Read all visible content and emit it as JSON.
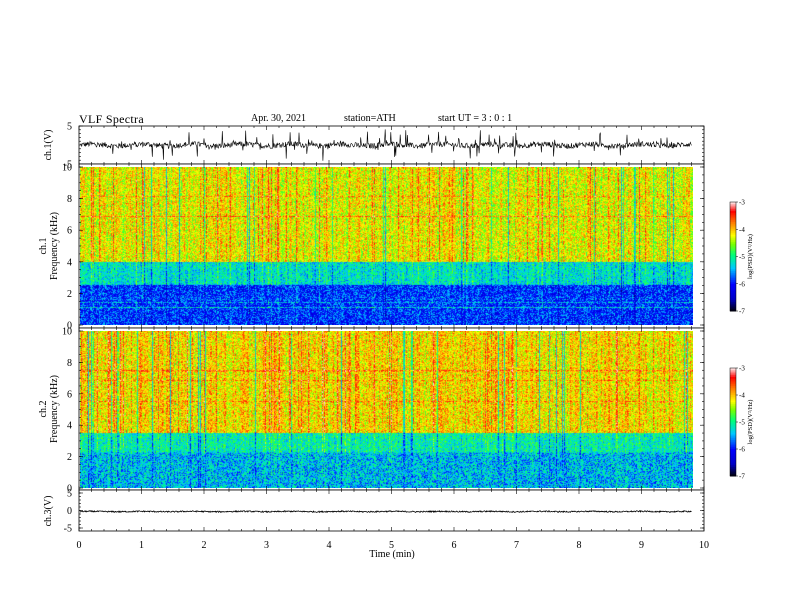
{
  "header": {
    "title": "VLF  Spectra",
    "date": "Apr. 30, 2021",
    "station": "station=ATH",
    "start": "start  UT  =   3  : 0   : 1"
  },
  "chart_data": [
    {
      "type": "line",
      "panel": "ch1-waveform",
      "ylabel": "ch.1(V)",
      "ylim": [
        -5,
        5
      ],
      "yticks": [
        "5",
        "-5"
      ],
      "baseline": 0,
      "amplitude_typical": 1.2,
      "amplitude_spikes": 3.5
    },
    {
      "type": "heatmap",
      "panel": "ch1-spectrogram",
      "ylabel": "ch.1\nFrequency (kHz)",
      "ylim": [
        0,
        10
      ],
      "yticks": [
        "0",
        "2",
        "4",
        "6",
        "8",
        "10"
      ],
      "xlim": [
        0,
        9.8
      ],
      "colorbar": {
        "label": "log(PSD)(V²/Hz)",
        "range": [
          -7,
          -3
        ],
        "ticks": [
          "-3",
          "-4",
          "-5",
          "-6",
          "-7"
        ]
      },
      "high_band_kHz": [
        4,
        10
      ],
      "high_band_level": -4.2,
      "mid_band_kHz": [
        2.5,
        4
      ],
      "mid_band_level": -5.2,
      "low_band_kHz": [
        0,
        2.5
      ],
      "low_band_level": -5.9
    },
    {
      "type": "heatmap",
      "panel": "ch2-spectrogram",
      "ylabel": "ch.2\nFrequency (kHz)",
      "ylim": [
        0,
        10
      ],
      "yticks": [
        "0",
        "2",
        "4",
        "6",
        "8",
        "10"
      ],
      "xlim": [
        0,
        9.8
      ],
      "colorbar": {
        "label": "log(PSD)(V²/Hz)",
        "range": [
          -7,
          -3
        ],
        "ticks": [
          "-3",
          "-4",
          "-5",
          "-6",
          "-7"
        ]
      },
      "high_band_kHz": [
        3.5,
        10
      ],
      "high_band_level": -4.1,
      "mid_band_kHz": [
        2.2,
        3.5
      ],
      "mid_band_level": -5.1,
      "low_band_kHz": [
        0,
        2.2
      ],
      "low_band_level": -5.4
    },
    {
      "type": "line",
      "panel": "ch3-waveform",
      "ylabel": "ch.3(V)",
      "ylim": [
        -5,
        5
      ],
      "yticks": [
        "5",
        "0",
        "-5"
      ],
      "baseline": -0.3,
      "amplitude_typical": 0.3
    }
  ],
  "xaxis": {
    "label": "Time  (min)",
    "range": [
      0,
      10
    ],
    "ticks": [
      "0",
      "1",
      "2",
      "3",
      "4",
      "5",
      "6",
      "7",
      "8",
      "9",
      "10"
    ]
  },
  "colors": {
    "colormap": [
      "#000000",
      "#0000ff",
      "#00c8ff",
      "#00ff64",
      "#ffff00",
      "#ff0000",
      "#ffffff"
    ],
    "waveform": "#000000"
  }
}
